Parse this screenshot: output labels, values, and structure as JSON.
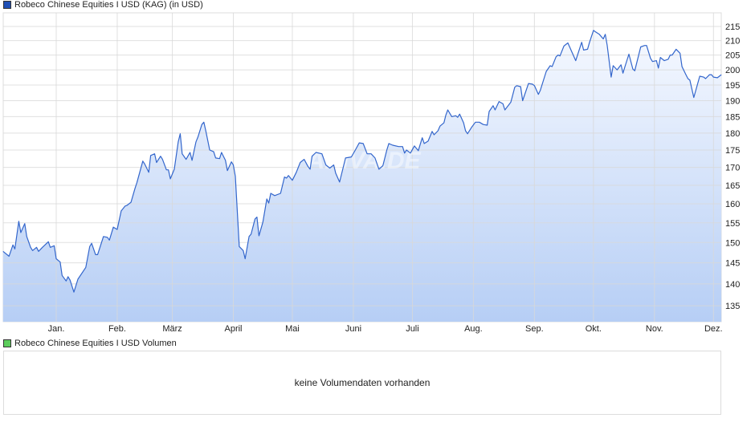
{
  "price_legend": {
    "label": "Robeco Chinese Equities I USD (KAG) (in USD)",
    "color": "#1f4fb5"
  },
  "volume_legend": {
    "label": "Robeco Chinese Equities I USD Volumen",
    "color": "#5ccd5c"
  },
  "volume_panel": {
    "message": "keine Volumendaten vorhanden"
  },
  "watermark": "ARIVA.DE",
  "chart_data": {
    "type": "area",
    "y_scale": "log",
    "ylim": [
      131,
      219
    ],
    "y_ticks": [
      135,
      140,
      145,
      150,
      155,
      160,
      165,
      170,
      175,
      180,
      185,
      190,
      195,
      200,
      205,
      210,
      215
    ],
    "x_ticks": [
      {
        "label": "Jan.",
        "month": 1
      },
      {
        "label": "Feb.",
        "month": 2
      },
      {
        "label": "März",
        "month": 3
      },
      {
        "label": "April",
        "month": 4
      },
      {
        "label": "Mai",
        "month": 5
      },
      {
        "label": "Juni",
        "month": 6
      },
      {
        "label": "Juli",
        "month": 7
      },
      {
        "label": "Aug.",
        "month": 8
      },
      {
        "label": "Sep.",
        "month": 9
      },
      {
        "label": "Okt.",
        "month": 10
      },
      {
        "label": "Nov.",
        "month": 11
      },
      {
        "label": "Dez.",
        "month": 12
      }
    ],
    "grid": true,
    "line_color": "#3366cc",
    "fill_top": "#f6f9ff",
    "fill_bottom": "#b6cef5",
    "series": [
      {
        "x": [
          "05.12.",
          "08.12.",
          "10.12.",
          "11.12.",
          "13.12.",
          "14.12.",
          "16.12.",
          "17.12.",
          "19.12.",
          "20.12.",
          "22.12.",
          "23.12.",
          "25.12.",
          "28.12.",
          "29.12.",
          "31.12.",
          "01.01.",
          "03.01.",
          "04.01.",
          "06.01.",
          "07.01.",
          "08.01.",
          "10.01.",
          "12.01.",
          "16.01.",
          "18.01.",
          "19.01.",
          "21.01.",
          "22.01.",
          "25.01.",
          "27.01.",
          "28.01.",
          "30.01.",
          "01.02.",
          "03.02.",
          "05.02.",
          "06.02.",
          "08.02.",
          "10.02.",
          "11.02.",
          "14.02.",
          "15.02.",
          "17.02.",
          "18.02.",
          "20.02.",
          "21.02.",
          "23.02.",
          "24.02.",
          "26.02.",
          "27.02.",
          "28.02.",
          "02.03.",
          "04.03.",
          "05.03.",
          "06.03.",
          "08.03.",
          "10.03.",
          "11.03.",
          "13.03.",
          "14.03.",
          "16.03.",
          "17.03.",
          "18.03.",
          "20.03.",
          "22.03.",
          "23.03.",
          "25.03.",
          "26.03.",
          "28.03.",
          "29.03.",
          "31.03.",
          "01.04.",
          "02.04.",
          "04.04.",
          "06.04.",
          "07.04.",
          "09.04.",
          "10.04.",
          "12.04.",
          "13.04.",
          "14.04.",
          "16.04.",
          "18.04.",
          "19.04.",
          "20.04.",
          "22.04.",
          "25.04.",
          "27.04.",
          "28.04.",
          "29.04.",
          "01.05.",
          "03.05.",
          "05.05.",
          "07.05.",
          "09.05.",
          "10.05.",
          "11.05.",
          "13.05.",
          "16.05.",
          "18.05.",
          "20.05.",
          "22.05.",
          "23.05.",
          "25.05.",
          "28.05.",
          "31.05.",
          "02.06.",
          "04.06.",
          "06.06.",
          "08.06.",
          "10.06.",
          "12.06.",
          "14.06.",
          "16.06.",
          "18.06.",
          "19.06.",
          "21.06.",
          "24.06.",
          "26.06.",
          "27.06.",
          "28.06.",
          "30.06.",
          "02.07.",
          "04.07.",
          "06.07.",
          "07.07.",
          "09.07.",
          "11.07.",
          "12.07.",
          "14.07.",
          "15.07.",
          "17.07.",
          "18.07.",
          "19.07.",
          "21.07.",
          "23.07.",
          "24.07.",
          "25.07.",
          "27.07.",
          "28.07.",
          "29.07.",
          "31.07.",
          "02.08.",
          "04.08.",
          "06.08.",
          "08.08.",
          "09.08.",
          "11.08.",
          "12.08.",
          "14.08.",
          "16.08.",
          "17.08.",
          "20.08.",
          "22.08.",
          "23.08.",
          "25.08.",
          "26.08.",
          "29.08.",
          "31.08.",
          "01.09.",
          "03.09.",
          "04.09.",
          "07.09.",
          "09.09.",
          "10.09.",
          "12.09.",
          "13.09.",
          "14.09.",
          "16.09.",
          "18.09.",
          "22.09.",
          "25.09.",
          "26.09.",
          "28.09.",
          "29.09.",
          "01.10.",
          "02.10.",
          "04.10.",
          "06.10.",
          "07.10.",
          "08.10.",
          "10.10.",
          "11.10.",
          "13.10.",
          "15.10.",
          "16.10.",
          "17.10.",
          "19.10.",
          "21.10.",
          "22.10.",
          "25.10.",
          "27.10.",
          "28.10.",
          "30.10.",
          "31.10.",
          "02.11.",
          "03.11.",
          "04.11.",
          "06.11.",
          "08.11.",
          "09.11.",
          "10.11.",
          "12.11.",
          "14.11.",
          "15.11.",
          "17.11.",
          "18.11.",
          "19.11.",
          "21.11.",
          "22.11.",
          "24.11.",
          "26.11.",
          "27.11.",
          "29.11.",
          "30.11.",
          "01.12.",
          "03.12.",
          "05.12."
        ],
        "values": [
          147.8,
          146.6,
          149.4,
          148.4,
          155.4,
          152.5,
          154.8,
          151.5,
          148.8,
          148.0,
          148.8,
          147.8,
          148.8,
          150.2,
          148.8,
          149.2,
          146.0,
          145.2,
          142.0,
          140.7,
          141.7,
          140.9,
          138.1,
          141.1,
          143.9,
          149.0,
          149.8,
          147.0,
          147.0,
          151.5,
          151.3,
          150.6,
          153.9,
          153.3,
          158.1,
          159.4,
          159.6,
          160.4,
          164.1,
          165.7,
          171.8,
          170.9,
          168.6,
          173.4,
          173.9,
          171.4,
          173.2,
          172.3,
          169.3,
          169.3,
          166.8,
          169.5,
          177.4,
          179.8,
          173.9,
          172.3,
          174.3,
          172.0,
          177.4,
          178.8,
          182.6,
          183.3,
          180.7,
          175.0,
          174.5,
          172.7,
          172.5,
          174.3,
          172.0,
          169.1,
          171.6,
          170.7,
          167.5,
          149.0,
          148.0,
          146.0,
          151.5,
          152.1,
          156.0,
          156.5,
          151.7,
          155.2,
          161.3,
          160.2,
          162.8,
          162.2,
          162.8,
          167.3,
          167.0,
          167.7,
          166.4,
          168.6,
          171.4,
          172.3,
          170.2,
          169.5,
          173.2,
          174.3,
          173.9,
          170.7,
          169.8,
          170.7,
          168.4,
          165.9,
          172.7,
          173.0,
          175.0,
          177.1,
          176.9,
          173.9,
          173.9,
          172.7,
          169.5,
          170.5,
          175.0,
          176.9,
          176.4,
          176.0,
          176.0,
          174.1,
          175.0,
          174.1,
          176.2,
          174.8,
          178.6,
          176.9,
          177.6,
          180.5,
          179.5,
          180.7,
          182.1,
          183.1,
          185.5,
          187.1,
          185.0,
          185.3,
          184.8,
          185.8,
          183.1,
          180.7,
          179.8,
          181.7,
          183.3,
          183.3,
          182.6,
          182.4,
          186.6,
          188.4,
          187.1,
          189.7,
          189.0,
          187.1,
          189.5,
          194.3,
          194.8,
          194.5,
          190.0,
          195.5,
          195.3,
          194.8,
          192.0,
          193.3,
          199.5,
          201.4,
          201.1,
          204.4,
          205.0,
          204.7,
          208.1,
          209.2,
          203.1,
          209.4,
          206.7,
          207.0,
          209.4,
          213.6,
          213.1,
          212.2,
          210.6,
          212.2,
          208.3,
          197.6,
          201.4,
          200.0,
          201.7,
          198.9,
          201.1,
          205.3,
          200.3,
          199.7,
          207.8,
          208.3,
          208.3,
          203.9,
          202.8,
          203.1,
          200.6,
          204.2,
          203.1,
          203.6,
          205.0,
          205.0,
          207.0,
          205.6,
          201.1,
          198.4,
          197.1,
          196.6,
          191.0,
          193.3,
          197.9,
          197.6,
          197.1,
          198.4,
          198.4,
          197.6,
          197.4,
          198.4
        ]
      }
    ]
  }
}
